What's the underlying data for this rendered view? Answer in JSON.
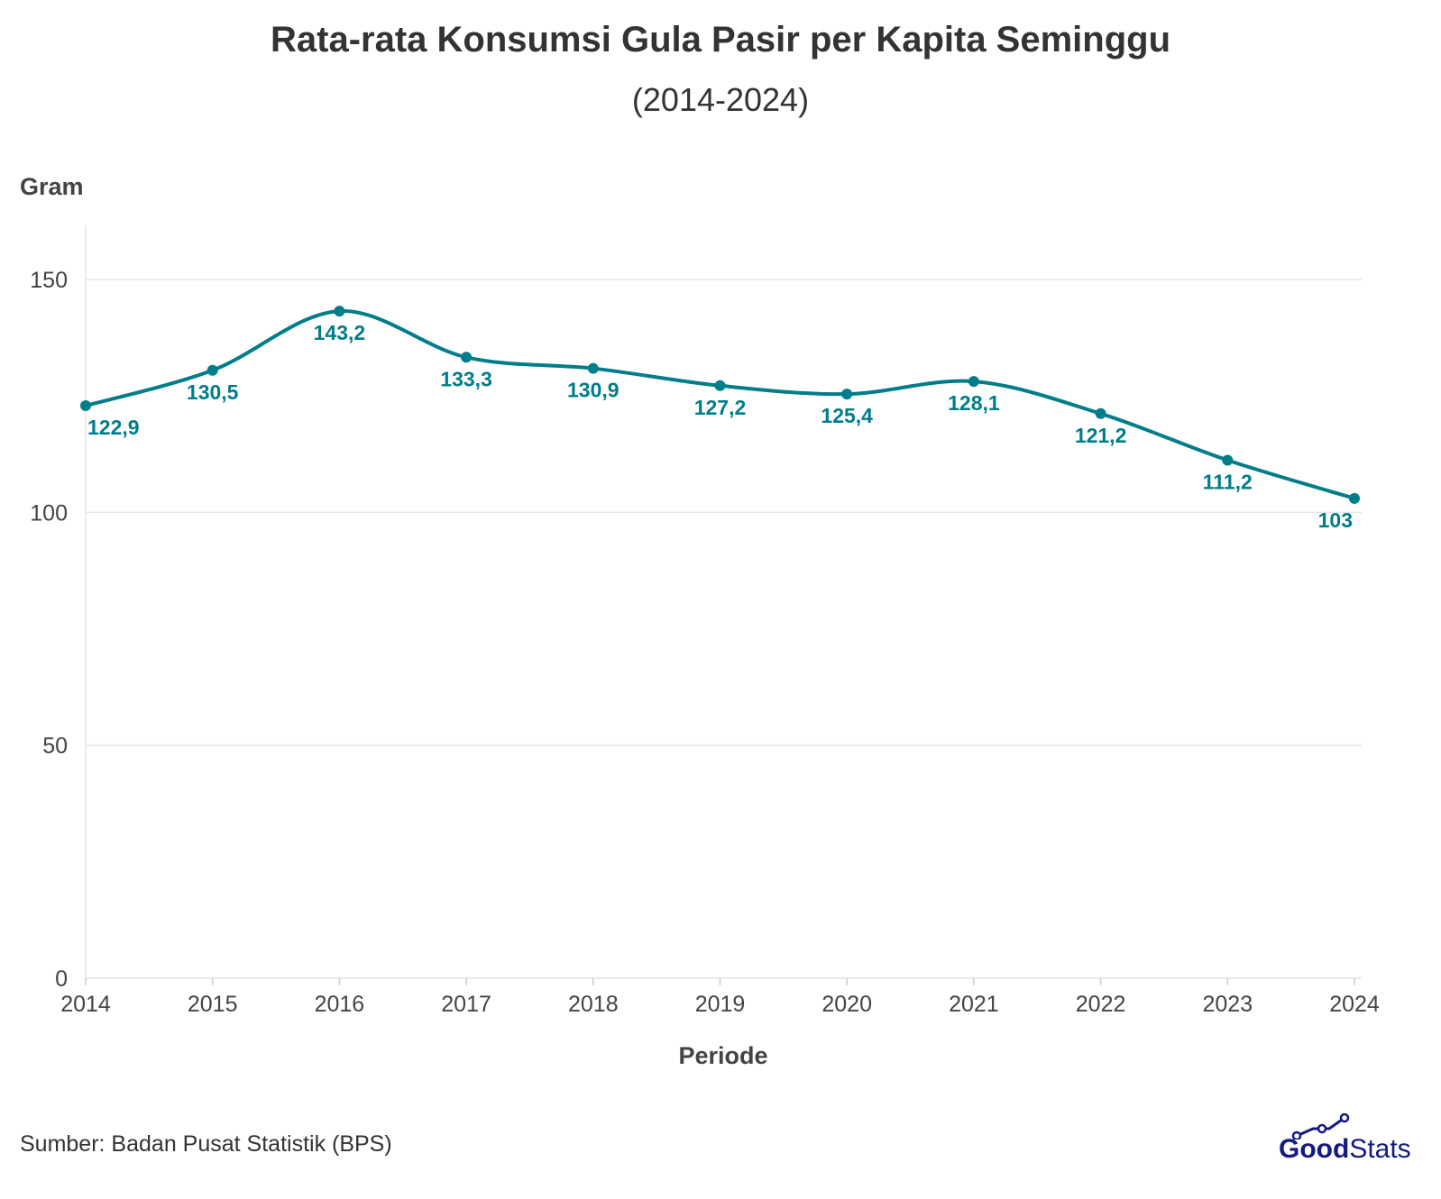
{
  "chart_data": {
    "type": "line",
    "title": "Rata-rata Konsumsi Gula Pasir per Kapita Seminggu",
    "subtitle": "(2014-2024)",
    "ylabel": "Gram",
    "xlabel": "Periode",
    "x": [
      "2014",
      "2015",
      "2016",
      "2017",
      "2018",
      "2019",
      "2020",
      "2021",
      "2022",
      "2023",
      "2024"
    ],
    "values": [
      122.9,
      130.5,
      143.2,
      133.3,
      130.9,
      127.2,
      125.4,
      128.1,
      121.2,
      111.2,
      103
    ],
    "data_labels": [
      "122,9",
      "130,5",
      "143,2",
      "133,3",
      "130,9",
      "127,2",
      "125,4",
      "128,1",
      "121,2",
      "111,2",
      "103"
    ],
    "ylim": [
      0,
      160
    ],
    "yticks": [
      0,
      50,
      100,
      150
    ],
    "grid": true,
    "smooth": true,
    "color": "#007d8a"
  },
  "source": "Sumber: Badan Pusat Statistik (BPS)",
  "logo": {
    "part1": "Good",
    "part2": "Stats",
    "color": "#131a80"
  }
}
